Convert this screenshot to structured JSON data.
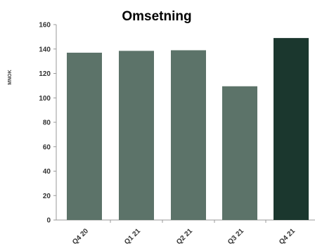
{
  "chart_data": {
    "type": "bar",
    "title": "Omsetning",
    "xlabel": "",
    "ylabel": "MNOK",
    "categories": [
      "Q4 20",
      "Q1 21",
      "Q2 21",
      "Q3 21",
      "Q4 21"
    ],
    "values": [
      137,
      138.5,
      139,
      109.5,
      149
    ],
    "ylim": [
      0,
      160
    ],
    "yticks": [
      0,
      20,
      40,
      60,
      80,
      100,
      120,
      140,
      160
    ],
    "grid": false,
    "legend": "none",
    "colors": {
      "default_bar": "#5c7369",
      "highlight_bar": "#1b372e"
    },
    "highlight_index": 4
  }
}
